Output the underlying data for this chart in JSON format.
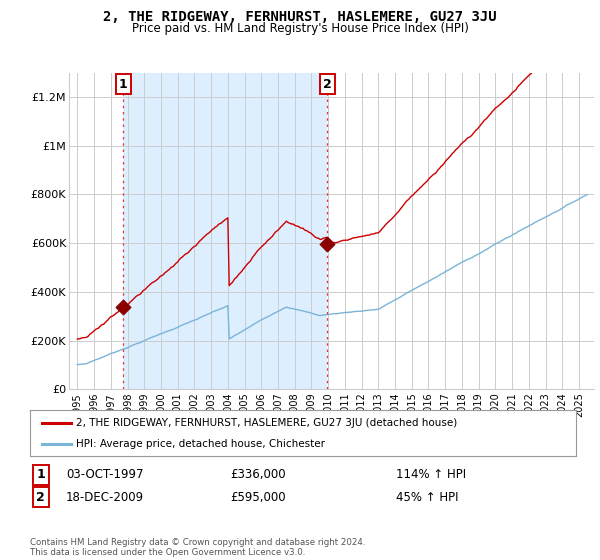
{
  "title": "2, THE RIDGEWAY, FERNHURST, HASLEMERE, GU27 3JU",
  "subtitle": "Price paid vs. HM Land Registry's House Price Index (HPI)",
  "legend_line1": "2, THE RIDGEWAY, FERNHURST, HASLEMERE, GU27 3JU (detached house)",
  "legend_line2": "HPI: Average price, detached house, Chichester",
  "sale1_date": "03-OCT-1997",
  "sale1_price": 336000,
  "sale1_pct": "114% ↑ HPI",
  "sale1_label": "1",
  "sale2_date": "18-DEC-2009",
  "sale2_price": 595000,
  "sale2_pct": "45% ↑ HPI",
  "sale2_label": "2",
  "copyright": "Contains HM Land Registry data © Crown copyright and database right 2024.\nThis data is licensed under the Open Government Licence v3.0.",
  "hpi_color": "#7ab4d8",
  "price_color": "#cc0000",
  "dot_color": "#8b0000",
  "vline_color": "#ee3333",
  "shade_color": "#ddeeff",
  "background_color": "#ffffff",
  "grid_color": "#cccccc",
  "ylim": [
    0,
    1300000
  ],
  "yticks": [
    0,
    200000,
    400000,
    600000,
    800000,
    1000000,
    1200000
  ],
  "ytick_labels": [
    "£0",
    "£200K",
    "£400K",
    "£600K",
    "£800K",
    "£1M",
    "£1.2M"
  ],
  "sale1_year": 1997.75,
  "sale2_year": 2009.96,
  "xmin": 1994.5,
  "xmax": 2025.9
}
